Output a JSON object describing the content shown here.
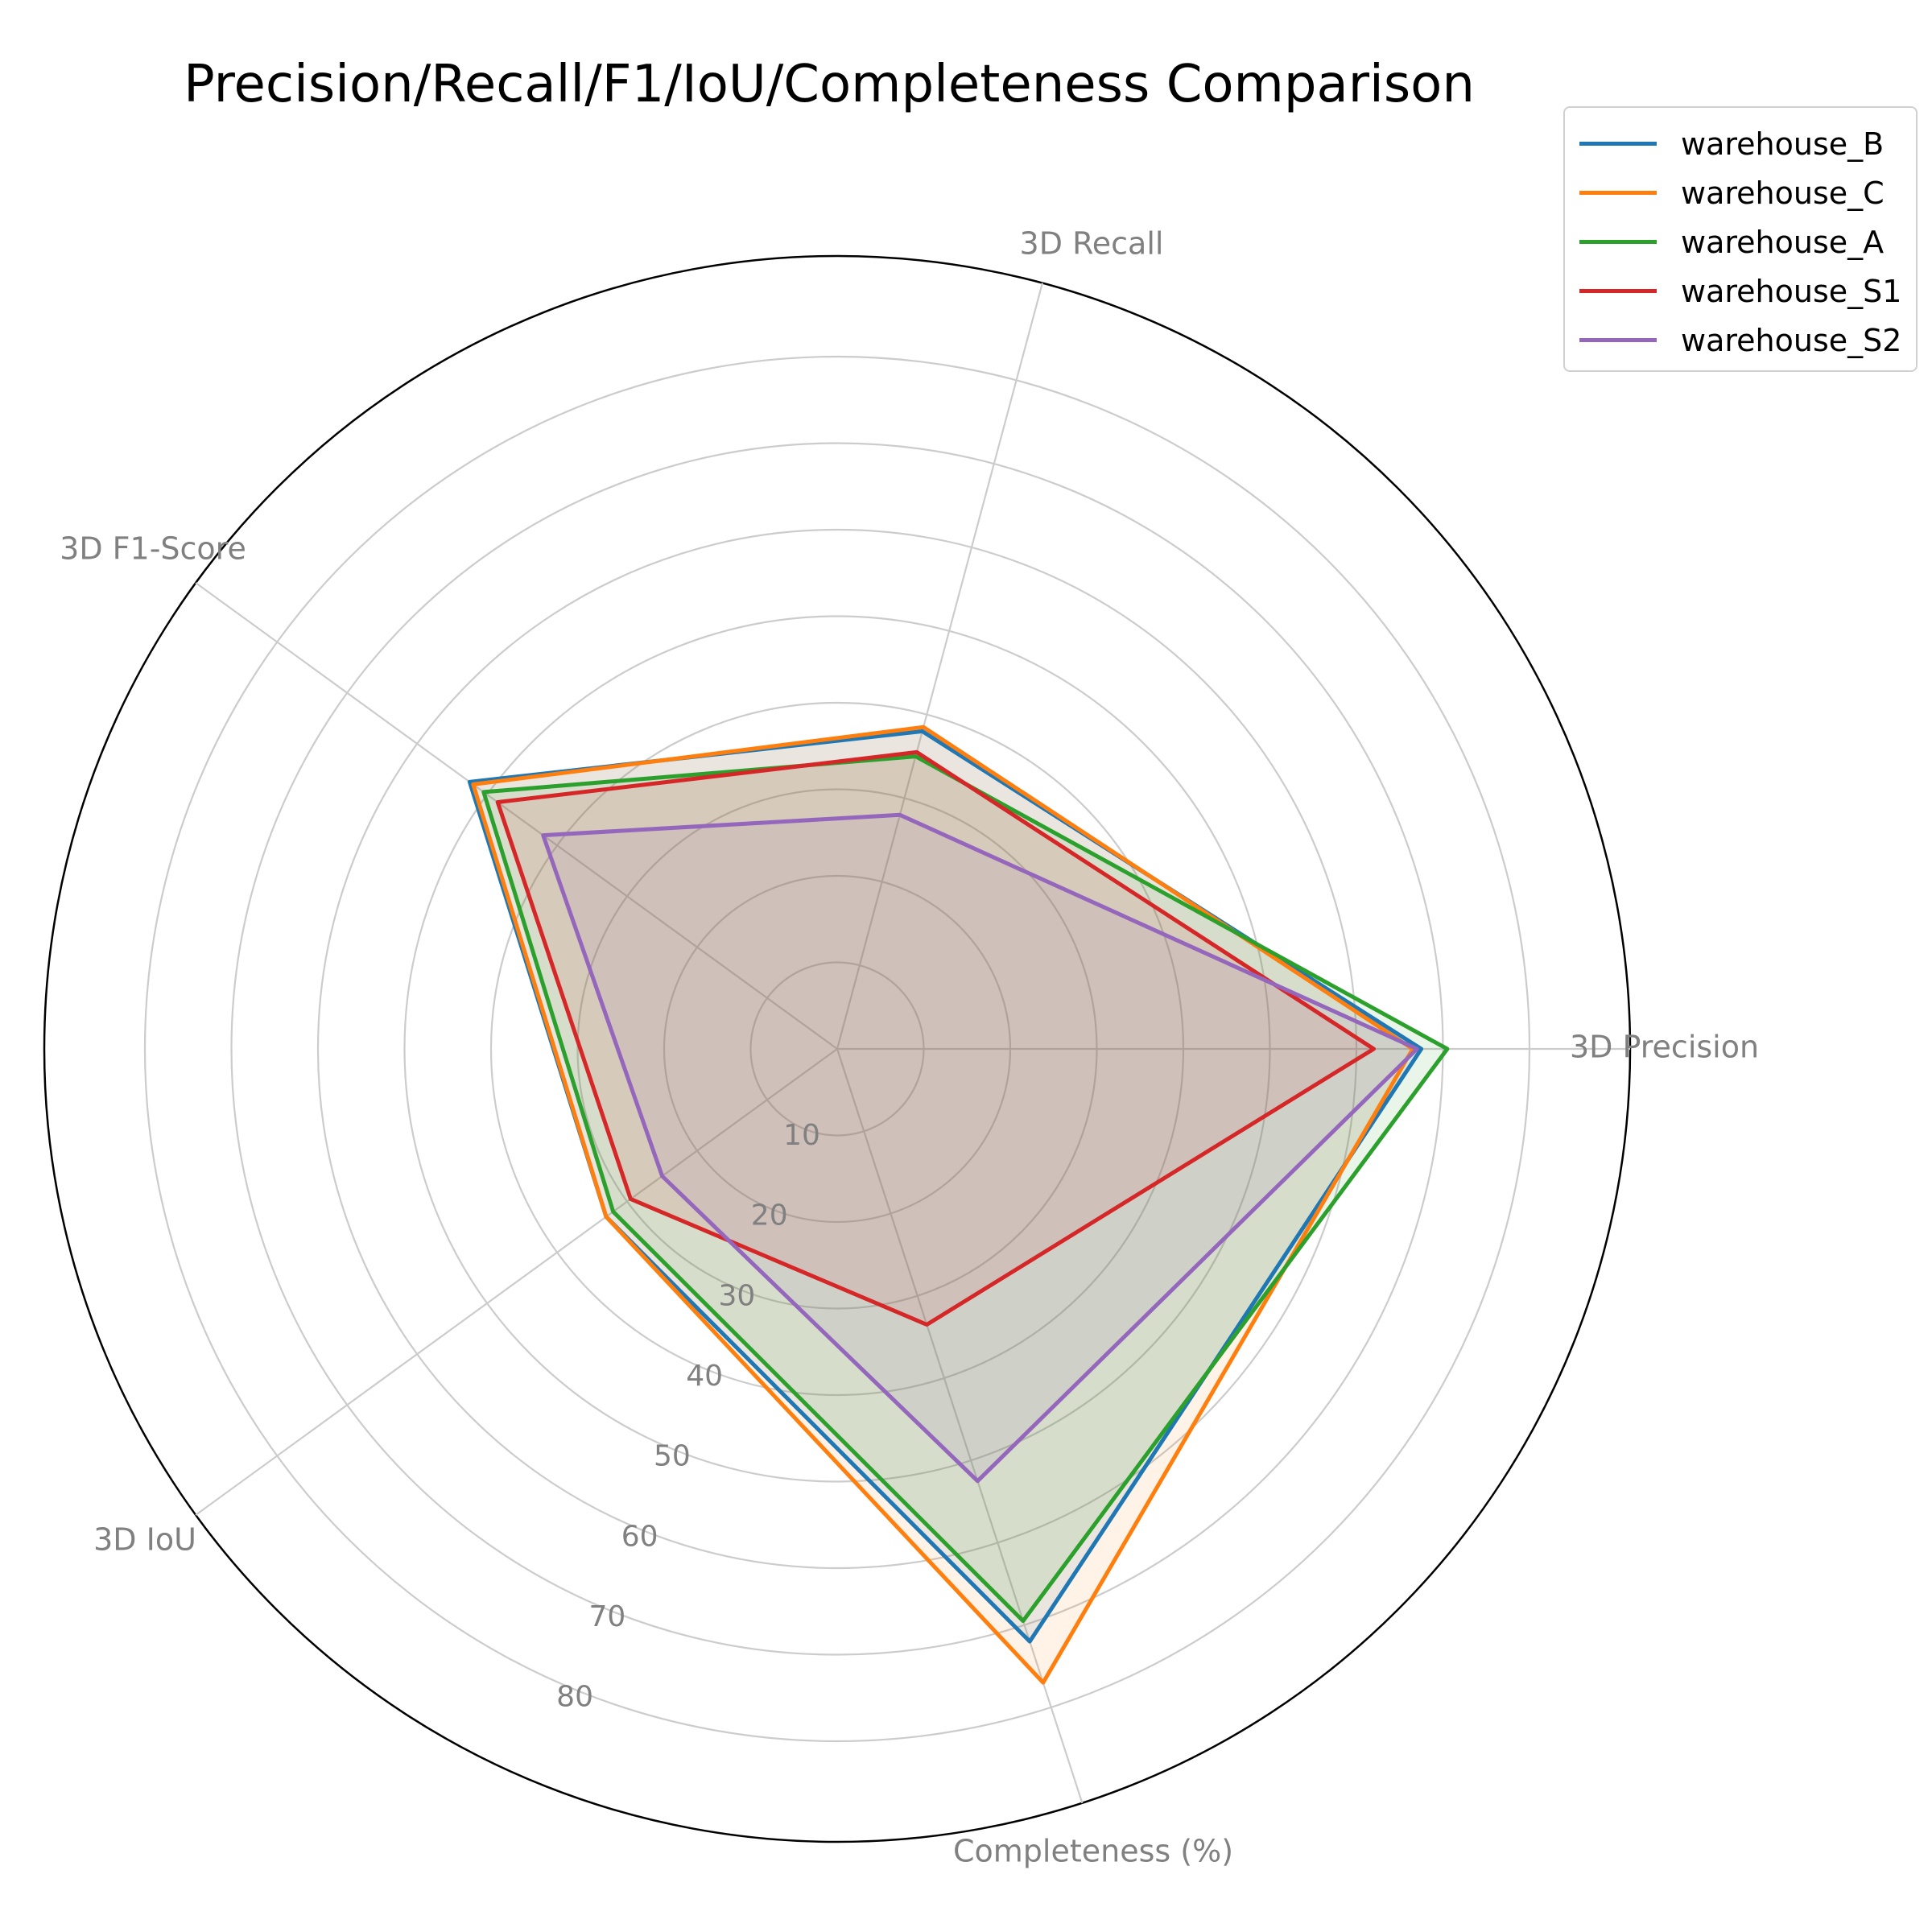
{
  "chart_data": {
    "type": "radar",
    "title": "Precision/Recall/F1/IoU/Completeness Comparison",
    "axes": [
      "3D Precision",
      "3D Recall",
      "3D F1-Score",
      "3D IoU",
      "Completeness (%)"
    ],
    "r_ticks": [
      10,
      20,
      30,
      40,
      50,
      60,
      70,
      80
    ],
    "r_max": 80,
    "grid": true,
    "legend_position": "top-right",
    "series": [
      {
        "name": "warehouse_B",
        "color": "#1f77b4",
        "values": [
          67.5,
          38.0,
          52.5,
          33.0,
          72.0
        ]
      },
      {
        "name": "warehouse_C",
        "color": "#ff7f0e",
        "values": [
          66.5,
          38.5,
          52.0,
          33.0,
          77.0
        ]
      },
      {
        "name": "warehouse_A",
        "color": "#2ca02c",
        "values": [
          70.5,
          35.0,
          50.5,
          32.0,
          69.5
        ]
      },
      {
        "name": "warehouse_S1",
        "color": "#d62728",
        "values": [
          62.0,
          35.5,
          48.5,
          29.5,
          33.5
        ]
      },
      {
        "name": "warehouse_S2",
        "color": "#9467bd",
        "values": [
          67.0,
          28.0,
          42.0,
          25.0,
          52.5
        ]
      }
    ]
  }
}
